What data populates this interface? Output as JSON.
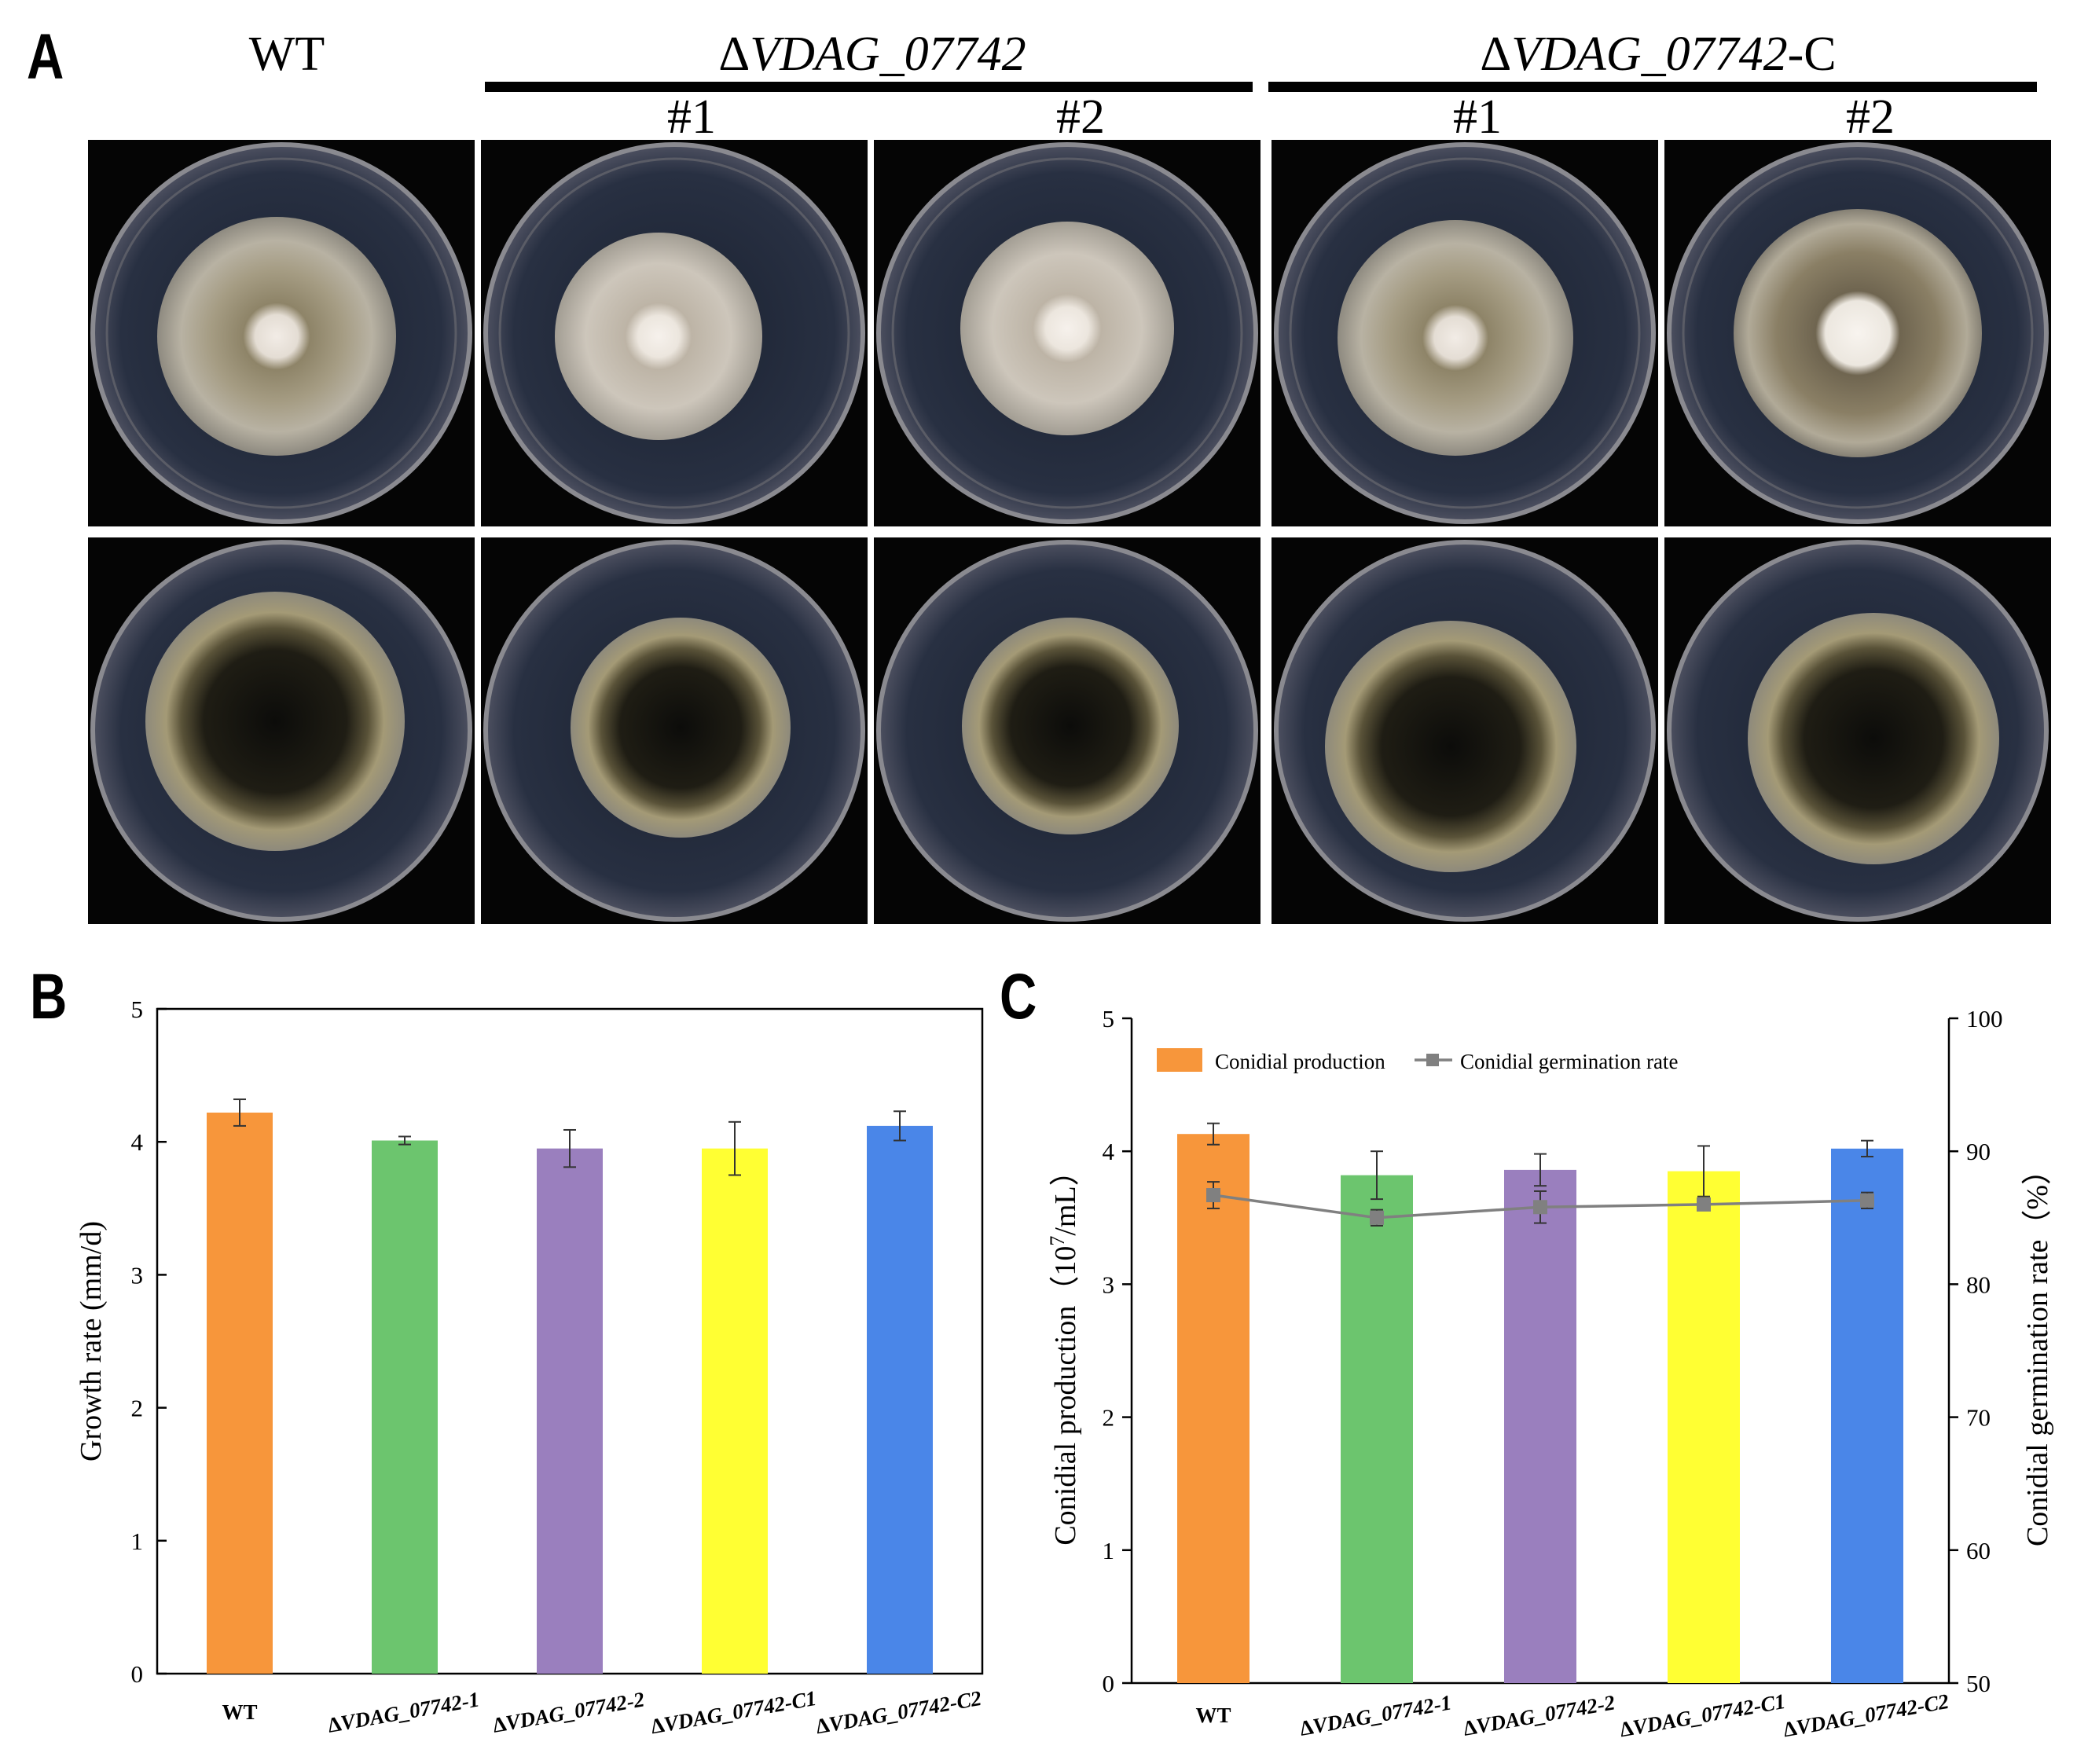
{
  "panels": {
    "a_label": "A",
    "b_label": "B",
    "c_label": "C"
  },
  "plates": {
    "columns": [
      {
        "header": "WT"
      },
      {
        "header": "ΔVDAG_07742",
        "subs": [
          "#1",
          "#2"
        ]
      },
      {
        "header": "ΔVDAG_07742-C",
        "subs": [
          "#1",
          "#2"
        ]
      }
    ],
    "wt_label": "WT",
    "ko_group_prefix": "Δ",
    "ko_group_name": "VDAG_07742",
    "comp_group_prefix": "Δ",
    "comp_group_name": "VDAG_07742",
    "comp_group_suffix": "-C",
    "sub1": "#1",
    "sub2": "#2",
    "sub3": "#1",
    "sub4": "#2"
  },
  "chart_data": [
    {
      "type": "bar",
      "panel": "B",
      "categories": [
        "WT",
        "ΔVDAG_07742-1",
        "ΔVDAG_07742-2",
        "ΔVDAG_07742-C1",
        "ΔVDAG_07742-C2"
      ],
      "values": [
        4.22,
        4.01,
        3.95,
        3.95,
        4.12
      ],
      "errors": [
        0.1,
        0.03,
        0.14,
        0.2,
        0.11
      ],
      "colors": [
        "#F7963B",
        "#6CC56E",
        "#9A7FBE",
        "#FFFF33",
        "#4A86E8"
      ],
      "ylabel": "Growth rate (mm/d)",
      "ylim": [
        0,
        5
      ],
      "yticks": [
        0,
        1,
        2,
        3,
        4,
        5
      ],
      "grid": false
    },
    {
      "type": "bar+line",
      "panel": "C",
      "categories": [
        "WT",
        "ΔVDAG_07742-1",
        "ΔVDAG_07742-2",
        "ΔVDAG_07742-C1",
        "ΔVDAG_07742-C2"
      ],
      "series": [
        {
          "name": "Conidial production",
          "type": "bar",
          "axis": "left",
          "values": [
            4.13,
            3.82,
            3.86,
            3.85,
            4.02
          ],
          "errors": [
            0.08,
            0.18,
            0.12,
            0.19,
            0.06
          ],
          "colors": [
            "#F7963B",
            "#6CC56E",
            "#9A7FBE",
            "#FFFF33",
            "#4A86E8"
          ],
          "legend_color": "#F7963B"
        },
        {
          "name": "Conidial germination rate",
          "type": "line",
          "axis": "right",
          "values": [
            86.7,
            85.0,
            85.8,
            86.0,
            86.3
          ],
          "errors": [
            1.0,
            0.6,
            1.2,
            0.4,
            0.6
          ],
          "color": "#808080"
        }
      ],
      "ylabel_left_prefix": "Conidial production（10",
      "ylabel_left_sup": "7",
      "ylabel_left_suffix": "/mL）",
      "ylabel_right": "Conidial germination rate（%）",
      "ylim_left": [
        0,
        5
      ],
      "yticks_left": [
        0,
        1,
        2,
        3,
        4,
        5
      ],
      "ylim_right": [
        50,
        100
      ],
      "yticks_right": [
        50,
        60,
        70,
        80,
        90,
        100
      ],
      "legend_placement": "top-left",
      "grid": false
    }
  ]
}
